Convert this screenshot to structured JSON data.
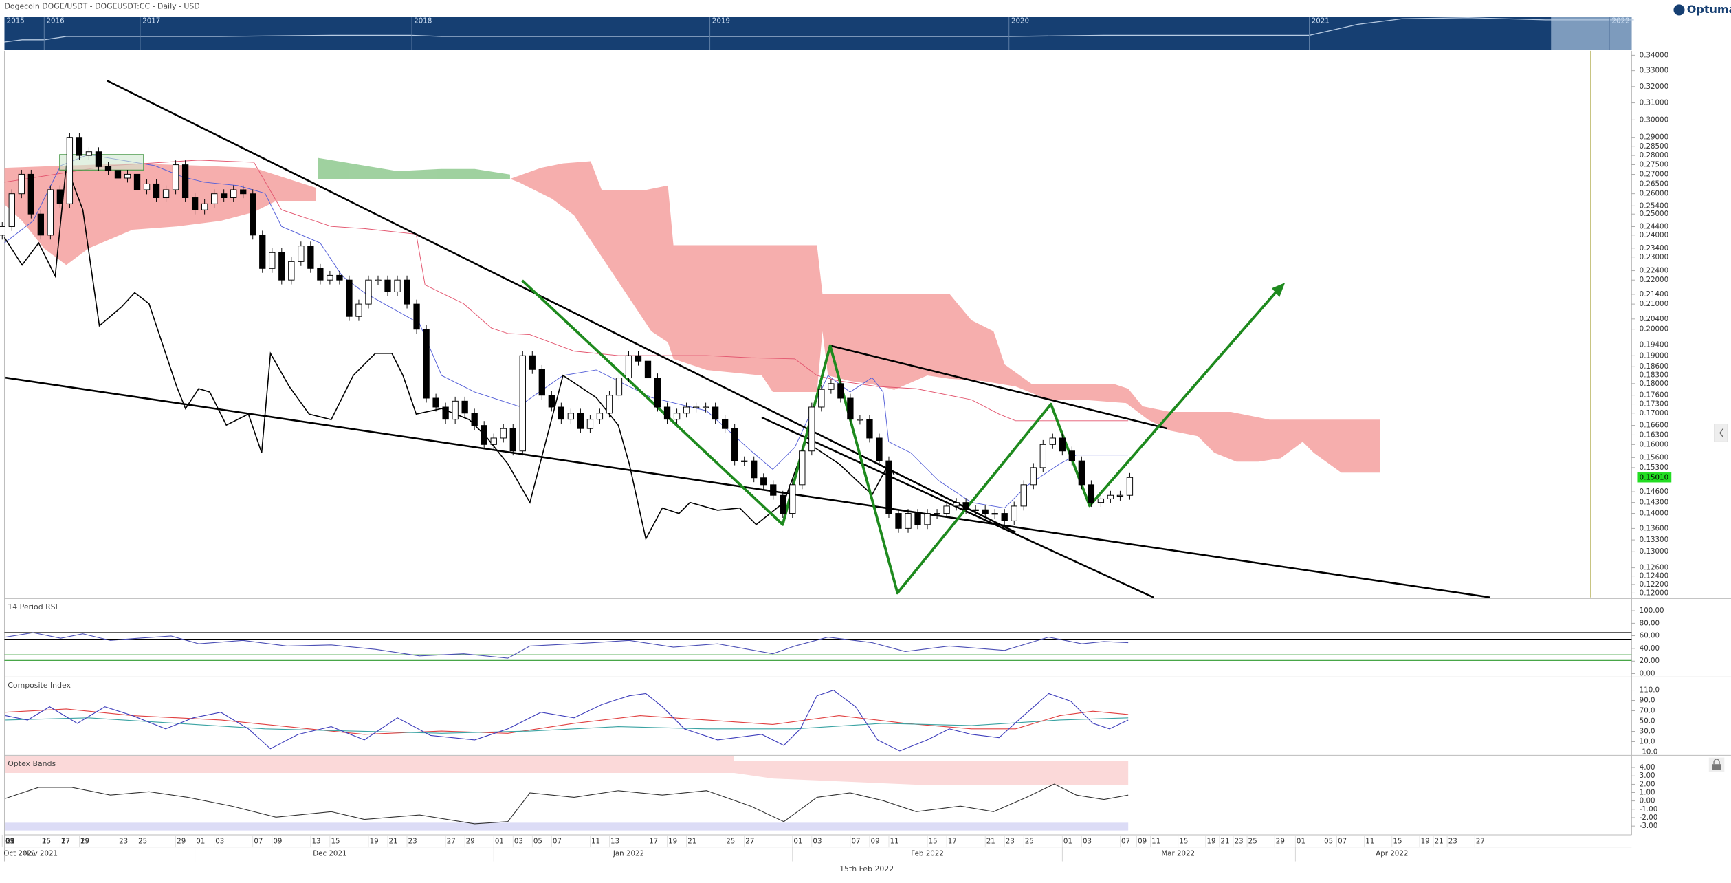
{
  "logo": "Optuma",
  "navigator": {
    "years": [
      "2015",
      "2016",
      "2017",
      "2018",
      "2019",
      "2020",
      "2021",
      "2022"
    ]
  },
  "cursor_date": "15th Feb 2022",
  "chart_data": [
    {
      "type": "candlestick",
      "title": "Dogecoin DOGE/USDT - DOGEUSDT:CC - Daily - USD",
      "log_scale": true,
      "ylim": [
        0.12,
        0.34
      ],
      "yticks": [
        {
          "value": 0.34,
          "label": "0.34000"
        },
        {
          "value": 0.33,
          "label": "0.33000"
        },
        {
          "value": 0.32,
          "label": "0.32000"
        },
        {
          "value": 0.31,
          "label": "0.31000"
        },
        {
          "value": 0.3,
          "label": "0.30000"
        },
        {
          "value": 0.29,
          "label": "0.29000"
        },
        {
          "value": 0.285,
          "label": "0.28500"
        },
        {
          "value": 0.28,
          "label": "0.28000"
        },
        {
          "value": 0.275,
          "label": "0.27500"
        },
        {
          "value": 0.27,
          "label": "0.27000"
        },
        {
          "value": 0.265,
          "label": "0.26500"
        },
        {
          "value": 0.26,
          "label": "0.26000"
        },
        {
          "value": 0.254,
          "label": "0.25400"
        },
        {
          "value": 0.25,
          "label": "0.25000"
        },
        {
          "value": 0.244,
          "label": "0.24400"
        },
        {
          "value": 0.24,
          "label": "0.24000"
        },
        {
          "value": 0.234,
          "label": "0.23400"
        },
        {
          "value": 0.23,
          "label": "0.23000"
        },
        {
          "value": 0.224,
          "label": "0.22400"
        },
        {
          "value": 0.22,
          "label": "0.22000"
        },
        {
          "value": 0.214,
          "label": "0.21400"
        },
        {
          "value": 0.21,
          "label": "0.21000"
        },
        {
          "value": 0.204,
          "label": "0.20400"
        },
        {
          "value": 0.2,
          "label": "0.20000"
        },
        {
          "value": 0.194,
          "label": "0.19400"
        },
        {
          "value": 0.19,
          "label": "0.19000"
        },
        {
          "value": 0.186,
          "label": "0.18600"
        },
        {
          "value": 0.183,
          "label": "0.18300"
        },
        {
          "value": 0.18,
          "label": "0.18000"
        },
        {
          "value": 0.176,
          "label": "0.17600"
        },
        {
          "value": 0.173,
          "label": "0.17300"
        },
        {
          "value": 0.17,
          "label": "0.17000"
        },
        {
          "value": 0.166,
          "label": "0.16600"
        },
        {
          "value": 0.163,
          "label": "0.16300"
        },
        {
          "value": 0.16,
          "label": "0.16000"
        },
        {
          "value": 0.156,
          "label": "0.15600"
        },
        {
          "value": 0.153,
          "label": "0.15300"
        },
        {
          "value": 0.146,
          "label": "0.14600"
        },
        {
          "value": 0.143,
          "label": "0.14300"
        },
        {
          "value": 0.14,
          "label": "0.14000"
        },
        {
          "value": 0.136,
          "label": "0.13600"
        },
        {
          "value": 0.133,
          "label": "0.13300"
        },
        {
          "value": 0.13,
          "label": "0.13000"
        },
        {
          "value": 0.126,
          "label": "0.12600"
        },
        {
          "value": 0.124,
          "label": "0.12400"
        },
        {
          "value": 0.122,
          "label": "0.12200"
        },
        {
          "value": 0.12,
          "label": "0.12000"
        }
      ],
      "last_price": {
        "value": 0.1501,
        "label": "0.15010"
      },
      "open": [
        0.24,
        0.244,
        0.26,
        0.27,
        0.25,
        0.24,
        0.262,
        0.255,
        0.29,
        0.28,
        0.282,
        0.274,
        0.272,
        0.268,
        0.27,
        0.262,
        0.265,
        0.258,
        0.262,
        0.275,
        0.258,
        0.252,
        0.255,
        0.26,
        0.258,
        0.262,
        0.26,
        0.24,
        0.225,
        0.232,
        0.22,
        0.228,
        0.235,
        0.225,
        0.22,
        0.222,
        0.22,
        0.205,
        0.21,
        0.22,
        0.22,
        0.215,
        0.22,
        0.21,
        0.2,
        0.175,
        0.172,
        0.168,
        0.174,
        0.17,
        0.166,
        0.16,
        0.162,
        0.165,
        0.158,
        0.19,
        0.185,
        0.176,
        0.172,
        0.168,
        0.17,
        0.165,
        0.168,
        0.17,
        0.176,
        0.182,
        0.19,
        0.188,
        0.182,
        0.172,
        0.168,
        0.17,
        0.172,
        0.172,
        0.172,
        0.168,
        0.165,
        0.155,
        0.155,
        0.15,
        0.148,
        0.145,
        0.14,
        0.148,
        0.158,
        0.172,
        0.178,
        0.18,
        0.175,
        0.168,
        0.168,
        0.162,
        0.155,
        0.14,
        0.136,
        0.14,
        0.137,
        0.14,
        0.14,
        0.142,
        0.143,
        0.141,
        0.141,
        0.14,
        0.14,
        0.138,
        0.142,
        0.148,
        0.153,
        0.16,
        0.162,
        0.158,
        0.155,
        0.148,
        0.143,
        0.144,
        0.145,
        0.145
      ],
      "close": [
        0.244,
        0.26,
        0.27,
        0.25,
        0.24,
        0.262,
        0.255,
        0.29,
        0.28,
        0.282,
        0.274,
        0.272,
        0.268,
        0.27,
        0.262,
        0.265,
        0.258,
        0.262,
        0.275,
        0.258,
        0.252,
        0.255,
        0.26,
        0.258,
        0.262,
        0.26,
        0.24,
        0.225,
        0.232,
        0.22,
        0.228,
        0.235,
        0.225,
        0.22,
        0.222,
        0.22,
        0.205,
        0.21,
        0.22,
        0.22,
        0.215,
        0.22,
        0.21,
        0.2,
        0.175,
        0.172,
        0.168,
        0.174,
        0.17,
        0.166,
        0.16,
        0.162,
        0.165,
        0.158,
        0.19,
        0.185,
        0.176,
        0.172,
        0.168,
        0.17,
        0.165,
        0.168,
        0.17,
        0.176,
        0.182,
        0.19,
        0.188,
        0.182,
        0.172,
        0.168,
        0.17,
        0.172,
        0.172,
        0.172,
        0.168,
        0.165,
        0.155,
        0.155,
        0.15,
        0.148,
        0.145,
        0.14,
        0.148,
        0.158,
        0.172,
        0.178,
        0.18,
        0.175,
        0.168,
        0.168,
        0.162,
        0.155,
        0.14,
        0.136,
        0.14,
        0.137,
        0.14,
        0.14,
        0.142,
        0.143,
        0.141,
        0.141,
        0.14,
        0.14,
        0.138,
        0.142,
        0.148,
        0.153,
        0.16,
        0.162,
        0.158,
        0.155,
        0.148,
        0.143,
        0.144,
        0.145,
        0.145,
        0.1501
      ],
      "day_ticks": [
        "21",
        "25",
        "27",
        "29",
        "01",
        "03",
        "05",
        "09",
        "11",
        "15",
        "17",
        "19",
        "23",
        "25",
        "29",
        "01",
        "03",
        "07",
        "09",
        "13",
        "15",
        "19",
        "21",
        "23",
        "27",
        "29",
        "01",
        "03",
        "05",
        "07",
        "11",
        "13",
        "17",
        "19",
        "21",
        "25",
        "27",
        "01",
        "03",
        "07",
        "09",
        "11",
        "15",
        "17",
        "21",
        "23",
        "25",
        "01",
        "03",
        "07",
        "09",
        "11",
        "15",
        "19",
        "21",
        "23",
        "25",
        "29",
        "01",
        "05",
        "07",
        "11",
        "15",
        "19",
        "21",
        "23",
        "27"
      ],
      "month_ticks": [
        "Oct 2021",
        "Nov 2021",
        "Dec 2021",
        "Jan 2022",
        "Feb 2022",
        "Mar 2022",
        "Apr 2022"
      ]
    },
    {
      "type": "indicator",
      "title": "14 Period RSI",
      "ylim": [
        0,
        100
      ],
      "yticks": [
        {
          "value": 100,
          "label": "100.00"
        },
        {
          "value": 80,
          "label": "80.00"
        },
        {
          "value": 60,
          "label": "60.00"
        },
        {
          "value": 40,
          "label": "40.00"
        },
        {
          "value": 20,
          "label": "20.00"
        },
        {
          "value": 0,
          "label": "0.00"
        }
      ]
    },
    {
      "type": "indicator",
      "title": "Composite Index",
      "ylim": [
        -10,
        110
      ],
      "yticks": [
        {
          "value": 110,
          "label": "110.0"
        },
        {
          "value": 90,
          "label": "90.0"
        },
        {
          "value": 70,
          "label": "70.0"
        },
        {
          "value": 50,
          "label": "50.0"
        },
        {
          "value": 30,
          "label": "30.0"
        },
        {
          "value": 10,
          "label": "10.0"
        },
        {
          "value": -10,
          "label": "-10.0"
        }
      ]
    },
    {
      "type": "indicator",
      "title": "Optex Bands",
      "ylim": [
        -3,
        4
      ],
      "yticks": [
        {
          "value": 4,
          "label": "4.00"
        },
        {
          "value": 3,
          "label": "3.00"
        },
        {
          "value": 2,
          "label": "2.00"
        },
        {
          "value": 1,
          "label": "1.00"
        },
        {
          "value": 0,
          "label": "0.00"
        },
        {
          "value": -1,
          "label": "-1.00"
        },
        {
          "value": -2,
          "label": "-2.00"
        },
        {
          "value": -3,
          "label": "-3.00"
        }
      ]
    }
  ]
}
